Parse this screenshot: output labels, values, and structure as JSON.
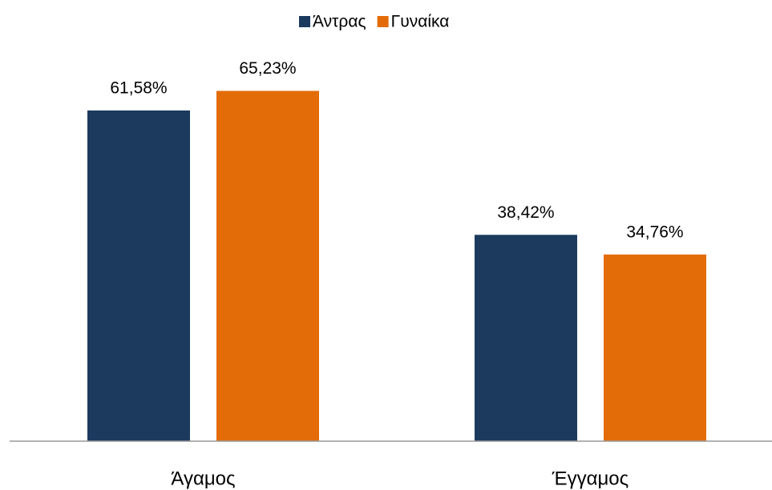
{
  "chart_data": {
    "type": "bar",
    "categories": [
      "Άγαμος",
      "Έγγαμος"
    ],
    "series": [
      {
        "name": "Άντρας",
        "color": "#1b3a5e",
        "values": [
          61.58,
          38.42
        ],
        "value_labels": [
          "61,58%",
          "38,42%"
        ]
      },
      {
        "name": "Γυναίκα",
        "color": "#e36c09",
        "values": [
          65.23,
          34.76
        ],
        "value_labels": [
          "65,23%",
          "34,76%"
        ]
      }
    ],
    "legend": "top"
  }
}
